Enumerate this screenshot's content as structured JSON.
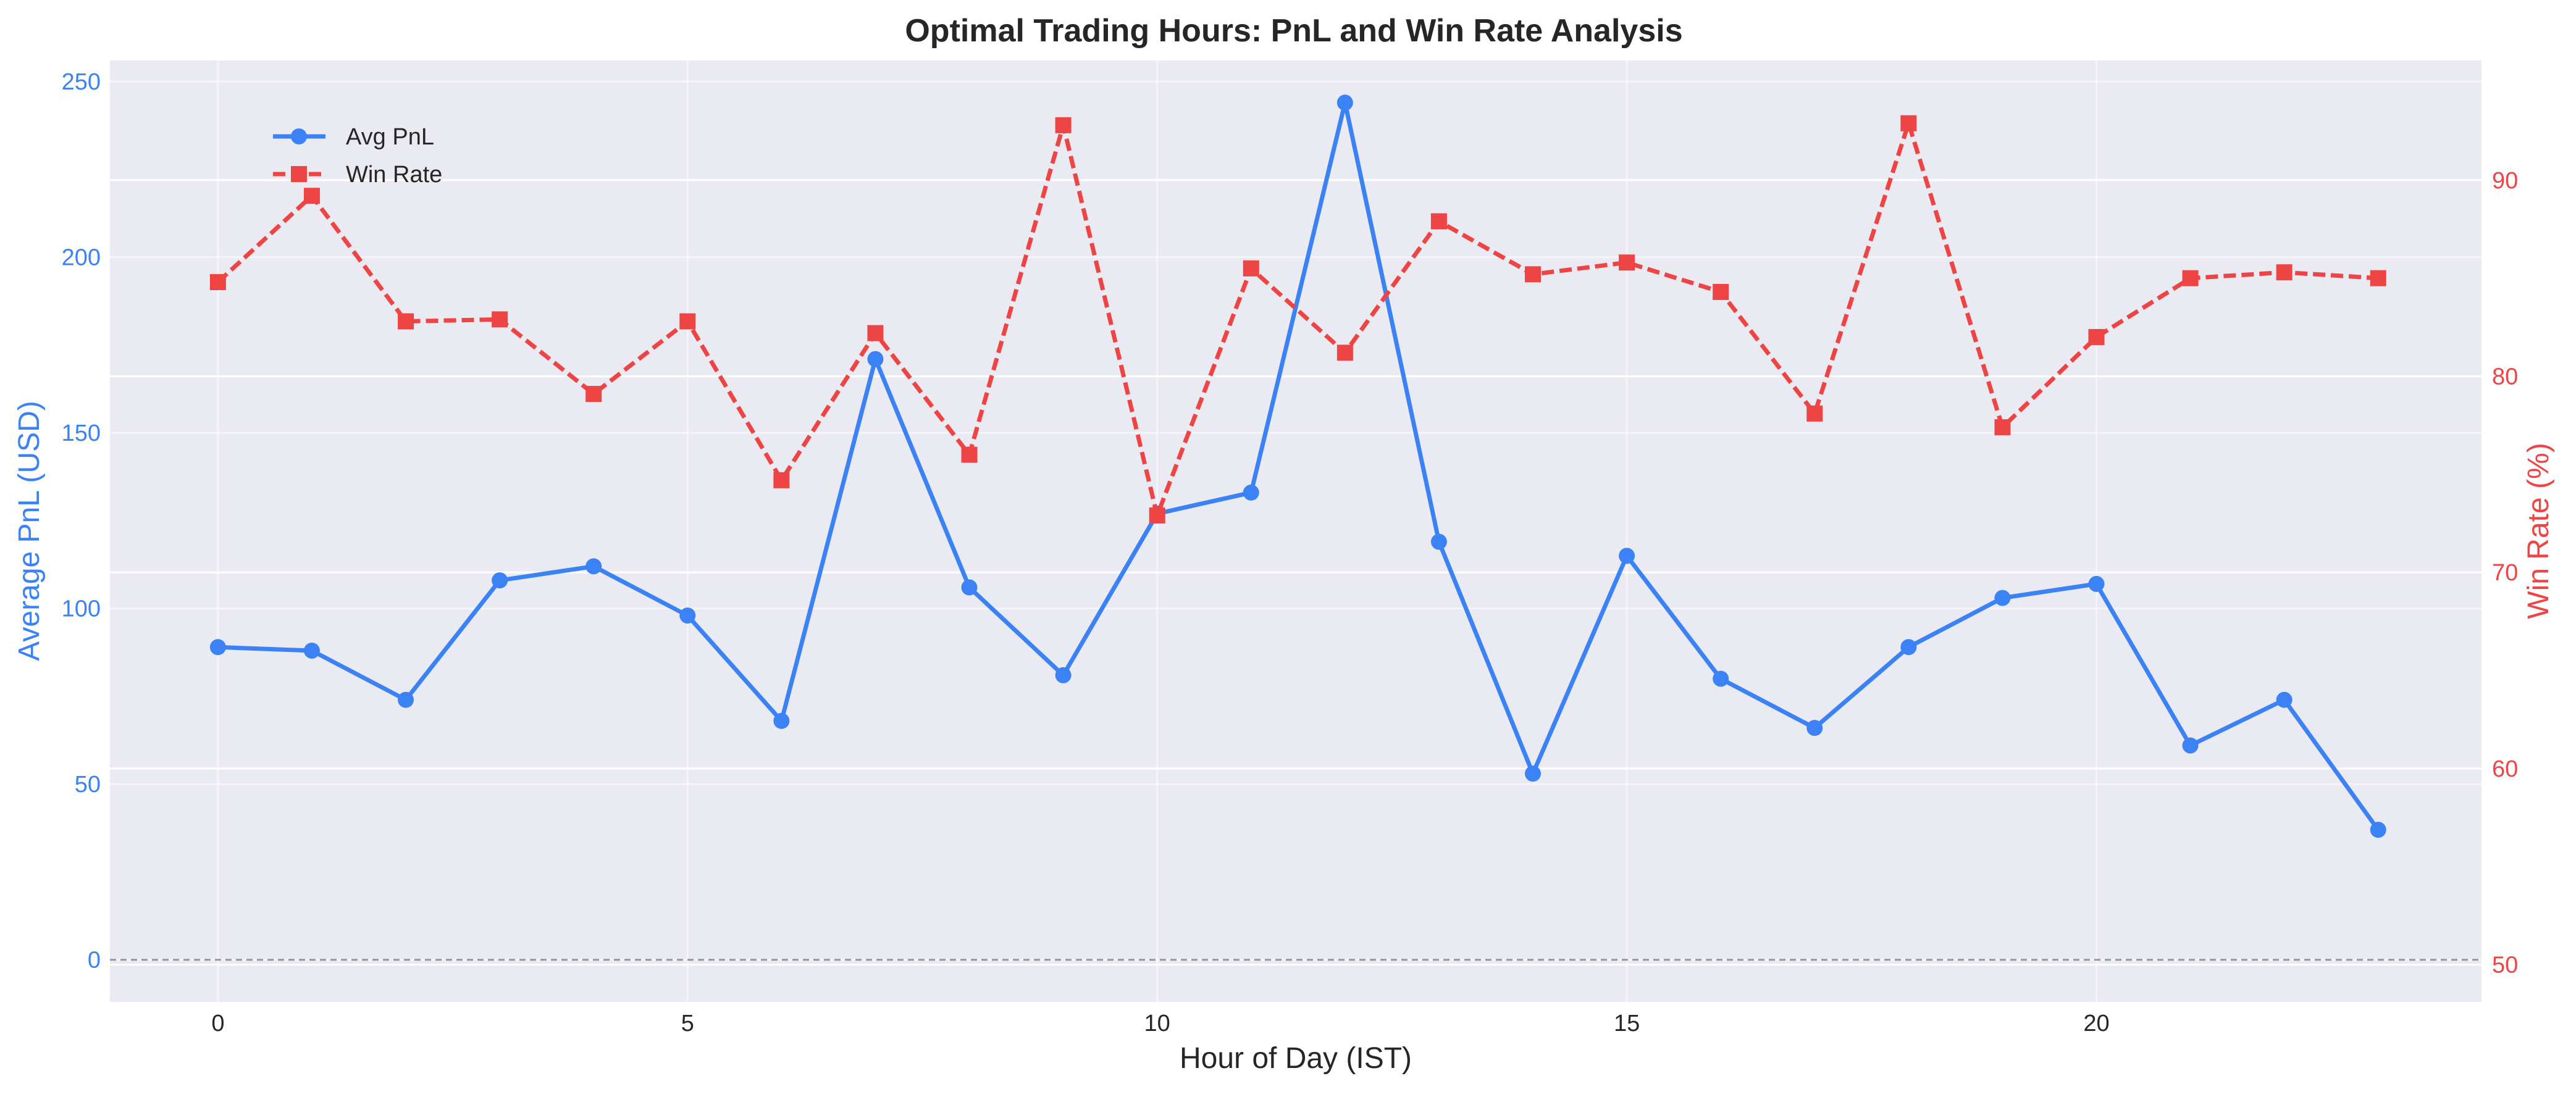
{
  "colors": {
    "pnl": "#3b82f6",
    "win_rate": "#ef4444",
    "plot_bg": "#eaeaf2",
    "grid": "#ffffff",
    "text": "#262626"
  },
  "chart_data": {
    "type": "line",
    "title": "Optimal Trading Hours: PnL and Win Rate Analysis",
    "xlabel": "Hour of Day (IST)",
    "ylabel_left": "Average PnL (USD)",
    "ylabel_right": "Win Rate (%)",
    "x": [
      0,
      1,
      2,
      3,
      4,
      5,
      6,
      7,
      8,
      9,
      10,
      11,
      12,
      13,
      14,
      15,
      16,
      17,
      18,
      19,
      20,
      21,
      22,
      23
    ],
    "xlim": [
      -1.15,
      24.1
    ],
    "ylim_left": [
      -12,
      256
    ],
    "ylim_right": [
      48.1,
      96.1
    ],
    "x_ticks": [
      0,
      5,
      10,
      15,
      20
    ],
    "y_ticks_left": [
      0,
      50,
      100,
      150,
      200,
      250
    ],
    "y_ticks_right": [
      50,
      60,
      70,
      80,
      90
    ],
    "grid": true,
    "legend_position": "upper-left",
    "zero_reference_line": 0,
    "series": [
      {
        "name": "Avg PnL",
        "axis": "left",
        "marker": "circle",
        "line_style": "solid",
        "values": [
          89,
          88,
          74,
          108,
          112,
          98,
          68,
          171,
          106,
          81,
          127,
          133,
          244,
          119,
          53,
          115,
          80,
          66,
          89,
          103,
          107,
          61,
          74,
          37
        ]
      },
      {
        "name": "Win Rate",
        "axis": "right",
        "marker": "square",
        "line_style": "dashed",
        "values": [
          84.8,
          89.2,
          82.8,
          82.9,
          79.1,
          82.8,
          74.7,
          82.2,
          76.0,
          92.8,
          72.9,
          85.5,
          81.2,
          87.9,
          85.2,
          85.8,
          84.3,
          78.1,
          92.9,
          77.4,
          82.0,
          85.0,
          85.3,
          85.0
        ]
      }
    ]
  }
}
